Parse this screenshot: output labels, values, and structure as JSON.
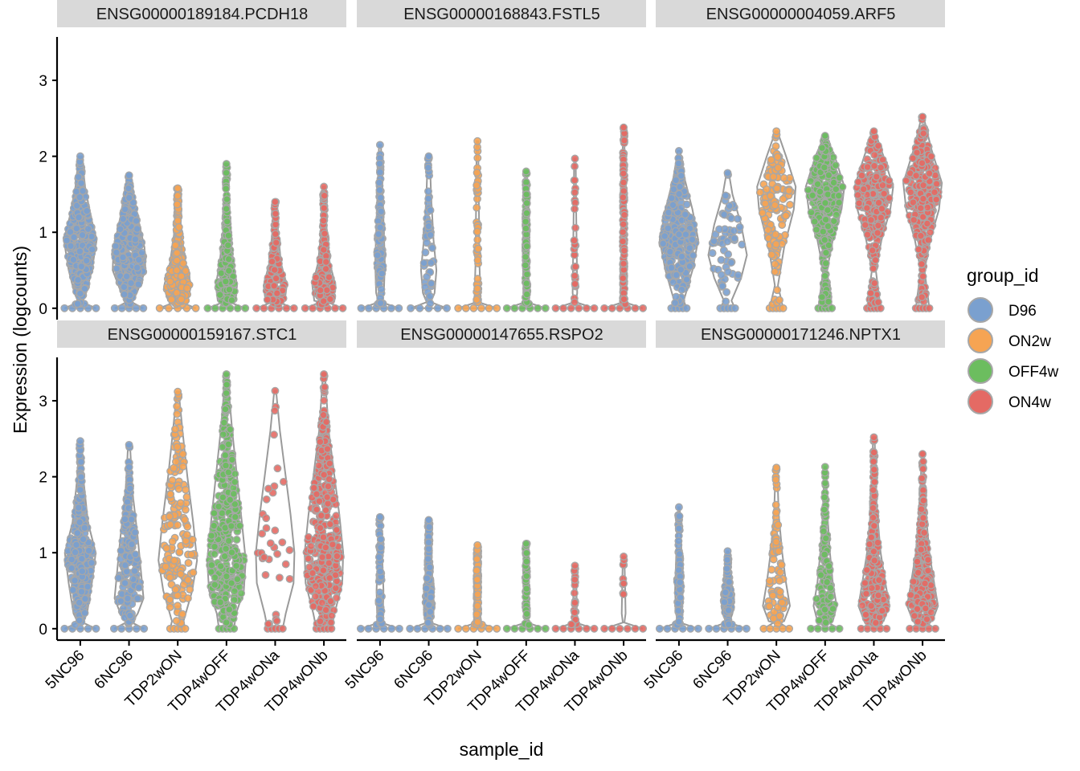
{
  "chart_data": {
    "type": "violin",
    "xlabel": "sample_id",
    "ylabel": "Expression (logcounts)",
    "y_ticks": [
      0,
      1,
      2,
      3
    ],
    "ylim": [
      -0.15,
      3.55
    ],
    "x_categories": [
      "5NC96",
      "6NC96",
      "TDP2wON",
      "TDP4wOFF",
      "TDP4wONa",
      "TDP4wONb"
    ],
    "sample_groups": [
      "D96",
      "D96",
      "ON2w",
      "OFF4w",
      "ON4w",
      "ON4w"
    ],
    "legend": {
      "title": "group_id",
      "position": "right",
      "entries": [
        {
          "label": "D96",
          "color": "#7aa0cf"
        },
        {
          "label": "ON2w",
          "color": "#f6a453"
        },
        {
          "label": "OFF4w",
          "color": "#6cbd5f"
        },
        {
          "label": "ON4w",
          "color": "#e46a64"
        }
      ]
    },
    "facets": [
      {
        "title": "ENSG00000189184.PCDH18",
        "samples": [
          {
            "max": 2.0,
            "zero_frac": 0.6,
            "body": [
              [
                0.2,
                0.3
              ],
              [
                0.5,
                0.6
              ],
              [
                0.9,
                0.85
              ],
              [
                1.2,
                0.55
              ],
              [
                1.6,
                0.25
              ],
              [
                2.0,
                0.08
              ]
            ]
          },
          {
            "max": 1.75,
            "zero_frac": 0.5,
            "body": [
              [
                0.2,
                0.4
              ],
              [
                0.5,
                0.85
              ],
              [
                0.8,
                0.8
              ],
              [
                1.2,
                0.45
              ],
              [
                1.5,
                0.25
              ],
              [
                1.75,
                0.08
              ]
            ]
          },
          {
            "max": 1.58,
            "zero_frac": 0.75,
            "body": [
              [
                0.1,
                0.5
              ],
              [
                0.3,
                0.7
              ],
              [
                0.6,
                0.4
              ],
              [
                1.0,
                0.18
              ],
              [
                1.58,
                0.06
              ]
            ]
          },
          {
            "max": 1.9,
            "zero_frac": 0.8,
            "body": [
              [
                0.1,
                0.45
              ],
              [
                0.3,
                0.55
              ],
              [
                0.6,
                0.35
              ],
              [
                1.0,
                0.18
              ],
              [
                1.5,
                0.08
              ],
              [
                1.9,
                0.04
              ]
            ]
          },
          {
            "max": 1.4,
            "zero_frac": 0.8,
            "body": [
              [
                0.1,
                0.5
              ],
              [
                0.3,
                0.6
              ],
              [
                0.6,
                0.3
              ],
              [
                1.0,
                0.15
              ],
              [
                1.4,
                0.05
              ]
            ]
          },
          {
            "max": 1.6,
            "zero_frac": 0.8,
            "body": [
              [
                0.1,
                0.5
              ],
              [
                0.3,
                0.6
              ],
              [
                0.6,
                0.3
              ],
              [
                1.0,
                0.15
              ],
              [
                1.6,
                0.05
              ]
            ]
          }
        ]
      },
      {
        "title": "ENSG00000168843.FSTL5",
        "samples": [
          {
            "max": 2.15,
            "zero_frac": 0.8,
            "body": [
              [
                0.2,
                0.2
              ],
              [
                0.6,
                0.25
              ],
              [
                1.0,
                0.2
              ],
              [
                1.6,
                0.12
              ],
              [
                2.15,
                0.05
              ]
            ]
          },
          {
            "max": 2.0,
            "zero_frac": 0.75,
            "body": [
              [
                0.2,
                0.3
              ],
              [
                0.5,
                0.4
              ],
              [
                0.9,
                0.25
              ],
              [
                1.5,
                0.12
              ],
              [
                2.0,
                0.05
              ]
            ]
          },
          {
            "max": 2.2,
            "zero_frac": 0.9,
            "body": [
              [
                0.2,
                0.15
              ],
              [
                0.6,
                0.1
              ],
              [
                1.2,
                0.08
              ],
              [
                2.2,
                0.04
              ]
            ]
          },
          {
            "max": 1.8,
            "zero_frac": 0.9,
            "body": [
              [
                0.2,
                0.15
              ],
              [
                0.6,
                0.12
              ],
              [
                1.2,
                0.08
              ],
              [
                1.8,
                0.04
              ]
            ]
          },
          {
            "max": 1.97,
            "zero_frac": 0.92,
            "body": [
              [
                0.2,
                0.12
              ],
              [
                0.6,
                0.1
              ],
              [
                1.2,
                0.07
              ],
              [
                1.97,
                0.04
              ]
            ]
          },
          {
            "max": 2.38,
            "zero_frac": 0.92,
            "body": [
              [
                0.2,
                0.12
              ],
              [
                0.6,
                0.1
              ],
              [
                1.2,
                0.07
              ],
              [
                2.38,
                0.04
              ]
            ]
          }
        ]
      },
      {
        "title": "ENSG00000004059.ARF5",
        "samples": [
          {
            "max": 2.07,
            "zero_frac": 0.06,
            "body": [
              [
                0.1,
                0.25
              ],
              [
                0.5,
                0.7
              ],
              [
                0.9,
                1.0
              ],
              [
                1.3,
                0.7
              ],
              [
                1.7,
                0.3
              ],
              [
                2.07,
                0.06
              ]
            ]
          },
          {
            "max": 1.78,
            "zero_frac": 0.04,
            "body": [
              [
                0.1,
                0.2
              ],
              [
                0.4,
                0.7
              ],
              [
                0.7,
                1.0
              ],
              [
                1.1,
                0.7
              ],
              [
                1.5,
                0.25
              ],
              [
                1.78,
                0.06
              ]
            ]
          },
          {
            "max": 2.33,
            "zero_frac": 0.0,
            "body": [
              [
                0.3,
                0.08
              ],
              [
                0.8,
                0.4
              ],
              [
                1.3,
                0.9
              ],
              [
                1.6,
                1.0
              ],
              [
                2.0,
                0.5
              ],
              [
                2.33,
                0.05
              ]
            ]
          },
          {
            "max": 2.27,
            "zero_frac": 0.0,
            "body": [
              [
                0.5,
                0.1
              ],
              [
                0.9,
                0.4
              ],
              [
                1.3,
                0.85
              ],
              [
                1.6,
                1.0
              ],
              [
                2.0,
                0.5
              ],
              [
                2.27,
                0.05
              ]
            ]
          },
          {
            "max": 2.33,
            "zero_frac": 0.0,
            "body": [
              [
                0.5,
                0.1
              ],
              [
                0.9,
                0.4
              ],
              [
                1.3,
                0.85
              ],
              [
                1.6,
                1.0
              ],
              [
                2.0,
                0.5
              ],
              [
                2.33,
                0.05
              ]
            ]
          },
          {
            "max": 2.52,
            "zero_frac": 0.0,
            "body": [
              [
                0.5,
                0.1
              ],
              [
                0.9,
                0.4
              ],
              [
                1.3,
                0.85
              ],
              [
                1.65,
                1.0
              ],
              [
                2.1,
                0.45
              ],
              [
                2.52,
                0.05
              ]
            ]
          }
        ]
      },
      {
        "title": "ENSG00000159167.STC1",
        "samples": [
          {
            "max": 2.47,
            "zero_frac": 0.6,
            "body": [
              [
                0.2,
                0.35
              ],
              [
                0.6,
                0.6
              ],
              [
                1.0,
                0.8
              ],
              [
                1.4,
                0.4
              ],
              [
                2.0,
                0.15
              ],
              [
                2.47,
                0.05
              ]
            ]
          },
          {
            "max": 2.42,
            "zero_frac": 0.55,
            "body": [
              [
                0.2,
                0.45
              ],
              [
                0.4,
                0.75
              ],
              [
                0.8,
                0.6
              ],
              [
                1.2,
                0.45
              ],
              [
                1.8,
                0.18
              ],
              [
                2.42,
                0.05
              ]
            ]
          },
          {
            "max": 3.12,
            "zero_frac": 0.05,
            "body": [
              [
                0.1,
                0.3
              ],
              [
                0.5,
                0.75
              ],
              [
                0.9,
                1.0
              ],
              [
                1.4,
                0.8
              ],
              [
                2.0,
                0.5
              ],
              [
                2.6,
                0.25
              ],
              [
                3.12,
                0.05
              ]
            ]
          },
          {
            "max": 3.35,
            "zero_frac": 0.05,
            "body": [
              [
                0.2,
                0.5
              ],
              [
                0.5,
                0.9
              ],
              [
                0.9,
                1.0
              ],
              [
                1.4,
                0.8
              ],
              [
                2.0,
                0.55
              ],
              [
                2.6,
                0.3
              ],
              [
                3.35,
                0.05
              ]
            ]
          },
          {
            "max": 3.13,
            "zero_frac": 0.05,
            "body": [
              [
                0.2,
                0.55
              ],
              [
                0.6,
                0.95
              ],
              [
                1.0,
                1.0
              ],
              [
                1.5,
                0.8
              ],
              [
                2.0,
                0.55
              ],
              [
                2.6,
                0.25
              ],
              [
                3.13,
                0.05
              ]
            ]
          },
          {
            "max": 3.35,
            "zero_frac": 0.05,
            "body": [
              [
                0.2,
                0.55
              ],
              [
                0.6,
                0.95
              ],
              [
                1.0,
                1.0
              ],
              [
                1.5,
                0.8
              ],
              [
                2.0,
                0.55
              ],
              [
                2.6,
                0.25
              ],
              [
                3.35,
                0.05
              ]
            ]
          }
        ]
      },
      {
        "title": "ENSG00000147655.RSPO2",
        "samples": [
          {
            "max": 1.47,
            "zero_frac": 0.85,
            "body": [
              [
                0.2,
                0.15
              ],
              [
                0.5,
                0.18
              ],
              [
                0.9,
                0.12
              ],
              [
                1.47,
                0.05
              ]
            ]
          },
          {
            "max": 1.43,
            "zero_frac": 0.8,
            "body": [
              [
                0.2,
                0.25
              ],
              [
                0.4,
                0.25
              ],
              [
                0.8,
                0.15
              ],
              [
                1.43,
                0.05
              ]
            ]
          },
          {
            "max": 1.1,
            "zero_frac": 0.95,
            "body": [
              [
                0.2,
                0.1
              ],
              [
                0.5,
                0.08
              ],
              [
                1.1,
                0.04
              ]
            ]
          },
          {
            "max": 1.12,
            "zero_frac": 0.95,
            "body": [
              [
                0.2,
                0.1
              ],
              [
                0.5,
                0.08
              ],
              [
                1.12,
                0.04
              ]
            ]
          },
          {
            "max": 0.83,
            "zero_frac": 0.95,
            "body": [
              [
                0.2,
                0.1
              ],
              [
                0.5,
                0.08
              ],
              [
                0.83,
                0.04
              ]
            ]
          },
          {
            "max": 0.95,
            "zero_frac": 0.95,
            "body": [
              [
                0.2,
                0.1
              ],
              [
                0.5,
                0.08
              ],
              [
                0.95,
                0.04
              ]
            ]
          }
        ]
      },
      {
        "title": "ENSG00000171246.NPTX1",
        "samples": [
          {
            "max": 1.6,
            "zero_frac": 0.85,
            "body": [
              [
                0.2,
                0.15
              ],
              [
                0.5,
                0.2
              ],
              [
                0.9,
                0.15
              ],
              [
                1.6,
                0.04
              ]
            ]
          },
          {
            "max": 1.02,
            "zero_frac": 0.8,
            "body": [
              [
                0.2,
                0.25
              ],
              [
                0.4,
                0.3
              ],
              [
                0.7,
                0.15
              ],
              [
                1.02,
                0.04
              ]
            ]
          },
          {
            "max": 2.12,
            "zero_frac": 0.4,
            "body": [
              [
                0.1,
                0.4
              ],
              [
                0.3,
                0.7
              ],
              [
                0.6,
                0.5
              ],
              [
                1.0,
                0.3
              ],
              [
                1.5,
                0.12
              ],
              [
                2.12,
                0.04
              ]
            ]
          },
          {
            "max": 2.13,
            "zero_frac": 0.5,
            "body": [
              [
                0.1,
                0.4
              ],
              [
                0.3,
                0.6
              ],
              [
                0.6,
                0.4
              ],
              [
                1.0,
                0.25
              ],
              [
                1.5,
                0.12
              ],
              [
                2.13,
                0.04
              ]
            ]
          },
          {
            "max": 2.52,
            "zero_frac": 0.4,
            "body": [
              [
                0.1,
                0.5
              ],
              [
                0.3,
                0.8
              ],
              [
                0.6,
                0.6
              ],
              [
                1.0,
                0.35
              ],
              [
                1.6,
                0.15
              ],
              [
                2.52,
                0.04
              ]
            ]
          },
          {
            "max": 2.3,
            "zero_frac": 0.4,
            "body": [
              [
                0.1,
                0.5
              ],
              [
                0.3,
                0.8
              ],
              [
                0.6,
                0.6
              ],
              [
                1.0,
                0.35
              ],
              [
                1.6,
                0.15
              ],
              [
                2.3,
                0.04
              ]
            ]
          }
        ]
      }
    ]
  }
}
